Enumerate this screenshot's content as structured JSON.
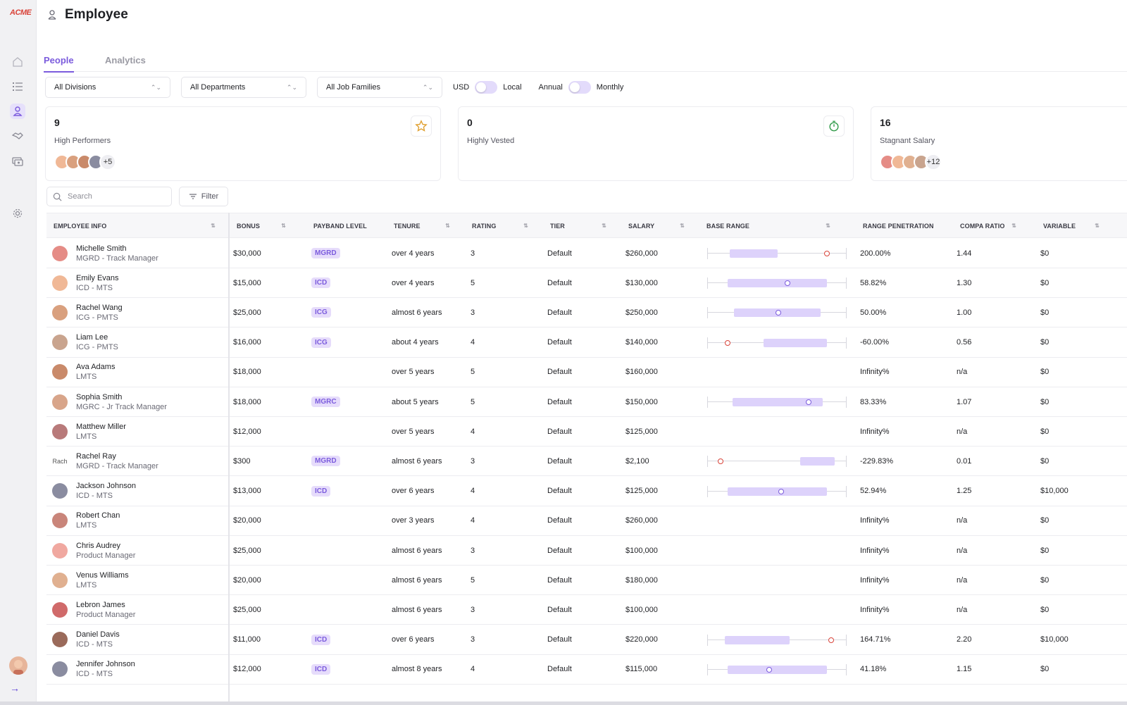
{
  "app": {
    "logo": "ACME"
  },
  "header": {
    "title": "Employee"
  },
  "tabs": [
    {
      "label": "People"
    },
    {
      "label": "Analytics"
    }
  ],
  "filters": {
    "divisions": "All Divisions",
    "departments": "All Departments",
    "job_families": "All Job Families",
    "currency_left": "USD",
    "currency_right": "Local",
    "period_left": "Annual",
    "period_right": "Monthly"
  },
  "cards": [
    {
      "count": "9",
      "label": "High Performers",
      "more": "+5",
      "icon": "star-icon"
    },
    {
      "count": "0",
      "label": "Highly Vested",
      "icon": "stopwatch-icon"
    },
    {
      "count": "16",
      "label": "Stagnant Salary",
      "more": "+12"
    }
  ],
  "search": {
    "placeholder": "Search"
  },
  "filter_button": "Filter",
  "columns": [
    "Employee Info",
    "Bonus",
    "Payband Level",
    "Tenure",
    "Rating",
    "Tier",
    "Salary",
    "Base Range",
    "Range Penetration",
    "Compa Ratio",
    "Variable"
  ],
  "colors": {
    "accent": "#7b5bdd",
    "accent_light": "#ddd2fb",
    "danger": "#d9443a"
  },
  "rows": [
    {
      "name": "Michelle Smith",
      "role": "MGRD - Track Manager",
      "bonus": "$30,000",
      "payband": "MGRD",
      "tenure": "over 4 years",
      "rating": "3",
      "tier": "Default",
      "salary": "$260,000",
      "penetration": "200.00%",
      "compa": "1.44",
      "variable": "$0",
      "avatar": "#e58c86"
    },
    {
      "name": "Emily Evans",
      "role": "ICD - MTS",
      "bonus": "$15,000",
      "payband": "ICD",
      "tenure": "over 4 years",
      "rating": "5",
      "tier": "Default",
      "salary": "$130,000",
      "penetration": "58.82%",
      "compa": "1.30",
      "variable": "$0",
      "avatar": "#f0b896"
    },
    {
      "name": "Rachel Wang",
      "role": "ICG - PMTS",
      "bonus": "$25,000",
      "payband": "ICG",
      "tenure": "almost 6 years",
      "rating": "3",
      "tier": "Default",
      "salary": "$250,000",
      "penetration": "50.00%",
      "compa": "1.00",
      "variable": "$0",
      "avatar": "#d9a07e"
    },
    {
      "name": "Liam Lee",
      "role": "ICG - PMTS",
      "bonus": "$16,000",
      "payband": "ICG",
      "tenure": "about 4 years",
      "rating": "4",
      "tier": "Default",
      "salary": "$140,000",
      "penetration": "-60.00%",
      "compa": "0.56",
      "variable": "$0",
      "avatar": "#c9a48e"
    },
    {
      "name": "Ava Adams",
      "role": "LMTS",
      "bonus": "$18,000",
      "payband": "",
      "tenure": "over 5 years",
      "rating": "5",
      "tier": "Default",
      "salary": "$160,000",
      "penetration": "Infinity%",
      "compa": "n/a",
      "variable": "$0",
      "avatar": "#c98a6a"
    },
    {
      "name": "Sophia Smith",
      "role": "MGRC - Jr Track Manager",
      "bonus": "$18,000",
      "payband": "MGRC",
      "tenure": "about 5 years",
      "rating": "5",
      "tier": "Default",
      "salary": "$150,000",
      "penetration": "83.33%",
      "compa": "1.07",
      "variable": "$0",
      "avatar": "#d8a58a"
    },
    {
      "name": "Matthew Miller",
      "role": "LMTS",
      "bonus": "$12,000",
      "payband": "",
      "tenure": "over 5 years",
      "rating": "4",
      "tier": "Default",
      "salary": "$125,000",
      "penetration": "Infinity%",
      "compa": "n/a",
      "variable": "$0",
      "avatar": "#b87a7a"
    },
    {
      "name": "Rachel Ray",
      "role": "MGRD - Track Manager",
      "bonus": "$300",
      "payband": "MGRD",
      "tenure": "almost 6 years",
      "rating": "3",
      "tier": "Default",
      "salary": "$2,100",
      "penetration": "-229.83%",
      "compa": "0.01",
      "variable": "$0",
      "avatar": "#ffffff",
      "avatar_alt": "Rach"
    },
    {
      "name": "Jackson Johnson",
      "role": "ICD - MTS",
      "bonus": "$13,000",
      "payband": "ICD",
      "tenure": "over 6 years",
      "rating": "4",
      "tier": "Default",
      "salary": "$125,000",
      "penetration": "52.94%",
      "compa": "1.25",
      "variable": "$10,000",
      "avatar": "#8a8ca0"
    },
    {
      "name": "Robert Chan",
      "role": "LMTS",
      "bonus": "$20,000",
      "payband": "",
      "tenure": "over 3 years",
      "rating": "4",
      "tier": "Default",
      "salary": "$260,000",
      "penetration": "Infinity%",
      "compa": "n/a",
      "variable": "$0",
      "avatar": "#c9857a"
    },
    {
      "name": "Chris Audrey",
      "role": "Product Manager",
      "bonus": "$25,000",
      "payband": "",
      "tenure": "almost 6 years",
      "rating": "3",
      "tier": "Default",
      "salary": "$100,000",
      "penetration": "Infinity%",
      "compa": "n/a",
      "variable": "$0",
      "avatar": "#f0a8a0"
    },
    {
      "name": "Venus Williams",
      "role": "LMTS",
      "bonus": "$20,000",
      "payband": "",
      "tenure": "almost 6 years",
      "rating": "5",
      "tier": "Default",
      "salary": "$180,000",
      "penetration": "Infinity%",
      "compa": "n/a",
      "variable": "$0",
      "avatar": "#e0b090"
    },
    {
      "name": "Lebron James",
      "role": "Product Manager",
      "bonus": "$25,000",
      "payband": "",
      "tenure": "almost 6 years",
      "rating": "3",
      "tier": "Default",
      "salary": "$100,000",
      "penetration": "Infinity%",
      "compa": "n/a",
      "variable": "$0",
      "avatar": "#d06a6a"
    },
    {
      "name": "Daniel Davis",
      "role": "ICD - MTS",
      "bonus": "$11,000",
      "payband": "ICD",
      "tenure": "over 6 years",
      "rating": "3",
      "tier": "Default",
      "salary": "$220,000",
      "penetration": "164.71%",
      "compa": "2.20",
      "variable": "$10,000",
      "avatar": "#9a6a5a"
    },
    {
      "name": "Jennifer Johnson",
      "role": "ICD - MTS",
      "bonus": "$12,000",
      "payband": "ICD",
      "tenure": "almost 8 years",
      "rating": "4",
      "tier": "Default",
      "salary": "$115,000",
      "penetration": "41.18%",
      "compa": "1.15",
      "variable": "$0",
      "avatar": "#8a8ca0"
    }
  ]
}
